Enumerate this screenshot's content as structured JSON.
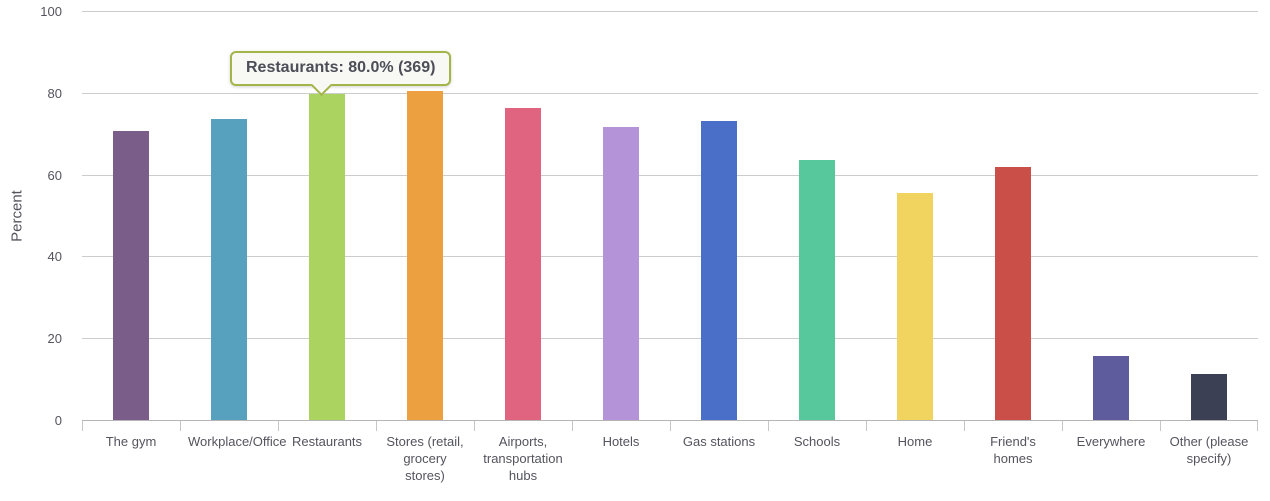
{
  "chart_data": {
    "type": "bar",
    "title": "",
    "xlabel": "",
    "ylabel": "Percent",
    "ylim": [
      0,
      100
    ],
    "yticks": [
      0,
      20,
      40,
      60,
      80,
      100
    ],
    "grid": true,
    "legend": "none",
    "categories": [
      "The gym",
      "Workplace/Office",
      "Restaurants",
      "Stores (retail, grocery stores)",
      "Airports, transportation hubs",
      "Hotels",
      "Gas stations",
      "Schools",
      "Home",
      "Friend's homes",
      "Everywhere",
      "Other (please specify)"
    ],
    "values": [
      71.0,
      73.8,
      80.0,
      80.6,
      76.6,
      72.0,
      73.4,
      63.8,
      55.8,
      62.0,
      16.0,
      11.5
    ],
    "colors": [
      "#7b5d89",
      "#57a0be",
      "#abd35f",
      "#eca03f",
      "#e06380",
      "#b493d8",
      "#4a6fc8",
      "#56c89b",
      "#f1d35f",
      "#c94f48",
      "#5f5c9e",
      "#3b4054"
    ]
  },
  "tooltip": {
    "text": "Restaurants: 80.0% (369)",
    "category": "Restaurants",
    "percent": "80.0%",
    "count": "369",
    "border_color": "#a3b448",
    "background": "#f8f9f4"
  },
  "colors": {
    "gridline": "#cccccc",
    "axis_line": "#b5b5b5",
    "label_text": "#54545e"
  }
}
